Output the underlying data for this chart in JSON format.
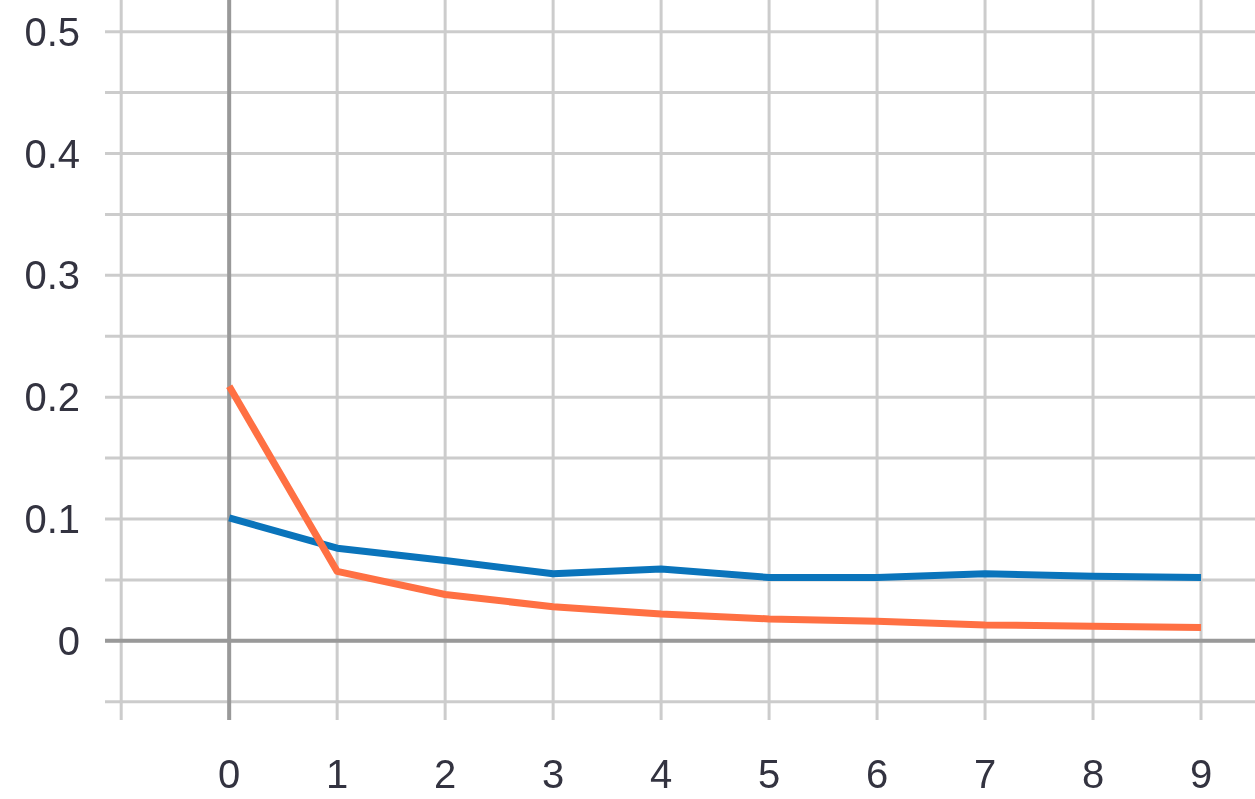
{
  "chart_data": {
    "type": "line",
    "x": [
      0,
      1,
      2,
      3,
      4,
      5,
      6,
      7,
      8,
      9
    ],
    "series": [
      {
        "color": "#0a74bb",
        "values": [
          0.101,
          0.076,
          0.066,
          0.055,
          0.059,
          0.052,
          0.052,
          0.055,
          0.053,
          0.052
        ]
      },
      {
        "color": "#ff7043",
        "values": [
          0.209,
          0.057,
          0.038,
          0.028,
          0.022,
          0.018,
          0.016,
          0.013,
          0.012,
          0.011
        ]
      }
    ],
    "xlim": [
      -1.15,
      9.5
    ],
    "ylim": [
      -0.065,
      0.526
    ],
    "xticks": [
      {
        "value": -1,
        "label": null
      },
      0,
      1,
      2,
      3,
      4,
      5,
      6,
      7,
      8,
      9
    ],
    "yticks": [
      {
        "value": -0.05,
        "label": null
      },
      0,
      {
        "value": 0.05,
        "label": null
      },
      0.1,
      {
        "value": 0.15,
        "label": null
      },
      0.2,
      {
        "value": 0.25,
        "label": null
      },
      0.3,
      {
        "value": 0.35,
        "label": null
      },
      0.4,
      {
        "value": 0.45,
        "label": null
      },
      0.5
    ],
    "grid": true,
    "line_style": "solid"
  }
}
